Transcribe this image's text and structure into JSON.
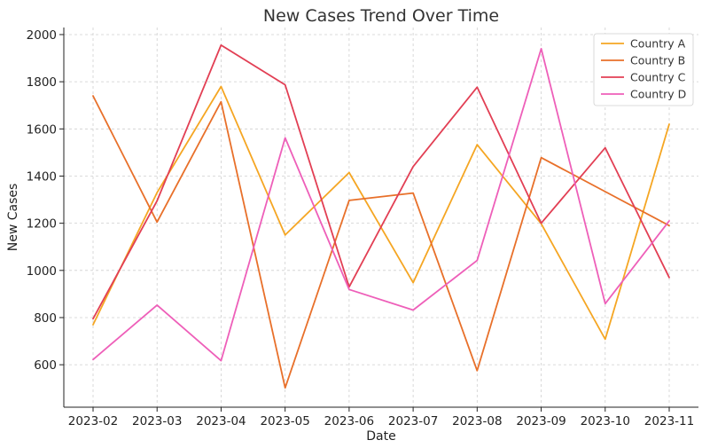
{
  "chart_data": {
    "type": "line",
    "title": "New Cases Trend Over Time",
    "xlabel": "Date",
    "ylabel": "New Cases",
    "x": [
      "2023-02",
      "2023-03",
      "2023-04",
      "2023-05",
      "2023-06",
      "2023-07",
      "2023-08",
      "2023-09",
      "2023-10",
      "2023-11"
    ],
    "yticks": [
      600,
      800,
      1000,
      1200,
      1400,
      1600,
      1800,
      2000
    ],
    "ylim": [
      420,
      2030
    ],
    "grid": true,
    "legend_position": "top-right",
    "series": [
      {
        "name": "Country A",
        "color": "#f5a623",
        "values": [
          770,
          1330,
          1780,
          1150,
          1415,
          948,
          1533,
          1198,
          708,
          1620
        ]
      },
      {
        "name": "Country B",
        "color": "#e8702a",
        "values": [
          1740,
          1205,
          1715,
          502,
          1297,
          1328,
          575,
          1478,
          1334,
          1190
        ]
      },
      {
        "name": "Country C",
        "color": "#e23f54",
        "values": [
          795,
          1295,
          1955,
          1787,
          930,
          1440,
          1777,
          1200,
          1520,
          970
        ]
      },
      {
        "name": "Country D",
        "color": "#ee5fb9",
        "values": [
          622,
          853,
          617,
          1562,
          919,
          832,
          1042,
          1940,
          859,
          1210
        ]
      }
    ]
  }
}
